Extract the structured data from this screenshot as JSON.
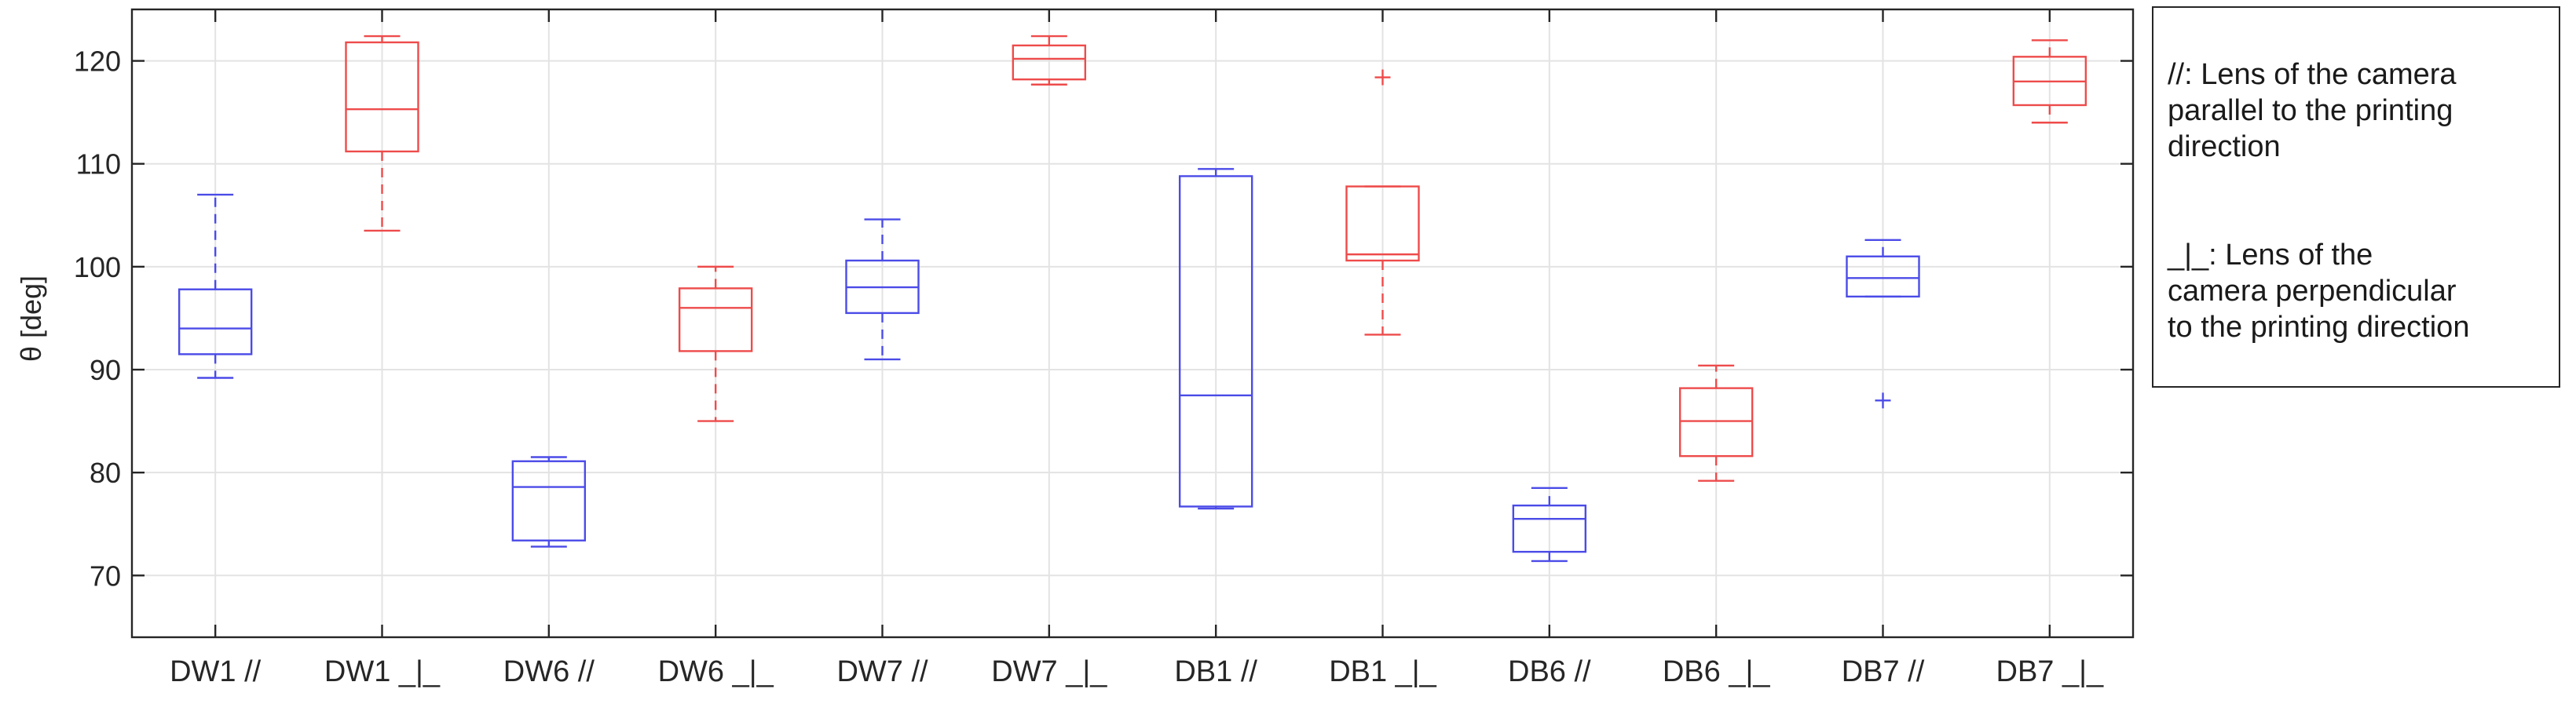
{
  "chart_data": {
    "type": "box",
    "ylabel": "θ [deg]",
    "ylim": [
      64,
      125
    ],
    "yticks": [
      70,
      80,
      90,
      100,
      110,
      120
    ],
    "grid": true,
    "legend_position": "right",
    "colors": {
      "parallel": "#4b4be8",
      "perpendicular": "#ee4b4b",
      "axis": "#262626",
      "grid": "#e3e3e3"
    },
    "categories": [
      "DW1 //",
      "DW1 _|_",
      "DW6 //",
      "DW6 _|_",
      "DW7 //",
      "DW7 _|_",
      "DB1 //",
      "DB1 _|_",
      "DB6 //",
      "DB6 _|_",
      "DB7 //",
      "DB7 _|_"
    ],
    "boxes": [
      {
        "label": "DW1 //",
        "orientation": "parallel",
        "whisker_low": 89.2,
        "q1": 91.5,
        "median": 94.0,
        "q3": 97.8,
        "whisker_high": 107.0,
        "outliers": []
      },
      {
        "label": "DW1 _|_",
        "orientation": "perpendicular",
        "whisker_low": 103.5,
        "q1": 111.2,
        "median": 115.3,
        "q3": 121.8,
        "whisker_high": 122.4,
        "outliers": []
      },
      {
        "label": "DW6 //",
        "orientation": "parallel",
        "whisker_low": 72.8,
        "q1": 73.4,
        "median": 78.6,
        "q3": 81.1,
        "whisker_high": 81.5,
        "outliers": []
      },
      {
        "label": "DW6 _|_",
        "orientation": "perpendicular",
        "whisker_low": 85.0,
        "q1": 91.8,
        "median": 96.0,
        "q3": 97.9,
        "whisker_high": 100.0,
        "outliers": []
      },
      {
        "label": "DW7 //",
        "orientation": "parallel",
        "whisker_low": 91.0,
        "q1": 95.5,
        "median": 98.0,
        "q3": 100.6,
        "whisker_high": 104.6,
        "outliers": []
      },
      {
        "label": "DW7 _|_",
        "orientation": "perpendicular",
        "whisker_low": 117.7,
        "q1": 118.2,
        "median": 120.2,
        "q3": 121.5,
        "whisker_high": 122.4,
        "outliers": []
      },
      {
        "label": "DB1 //",
        "orientation": "parallel",
        "whisker_low": 76.5,
        "q1": 76.7,
        "median": 87.5,
        "q3": 108.8,
        "whisker_high": 109.5,
        "outliers": []
      },
      {
        "label": "DB1 _|_",
        "orientation": "perpendicular",
        "whisker_low": 93.4,
        "q1": 100.6,
        "median": 101.2,
        "q3": 107.8,
        "whisker_high": 107.8,
        "outliers": [
          118.4
        ]
      },
      {
        "label": "DB6 //",
        "orientation": "parallel",
        "whisker_low": 71.4,
        "q1": 72.3,
        "median": 75.5,
        "q3": 76.8,
        "whisker_high": 78.5,
        "outliers": []
      },
      {
        "label": "DB6 _|_",
        "orientation": "perpendicular",
        "whisker_low": 79.2,
        "q1": 81.6,
        "median": 85.0,
        "q3": 88.2,
        "whisker_high": 90.4,
        "outliers": []
      },
      {
        "label": "DB7 //",
        "orientation": "parallel",
        "whisker_low": 97.1,
        "q1": 97.1,
        "median": 98.9,
        "q3": 101.0,
        "whisker_high": 102.6,
        "outliers": [
          87.0
        ]
      },
      {
        "label": "DB7 _|_",
        "orientation": "perpendicular",
        "whisker_low": 114.0,
        "q1": 115.7,
        "median": 118.0,
        "q3": 120.4,
        "whisker_high": 122.0,
        "outliers": []
      }
    ],
    "legend": [
      {
        "text": "//: Lens of the camera parallel to the printing direction"
      },
      {
        "text": "_|_: Lens of the camera perpendicular to the printing direction"
      }
    ]
  },
  "legend_display": [
    "//: Lens of the camera\nparallel to the printing\ndirection",
    "_|_: Lens of the\ncamera perpendicular\nto the printing direction"
  ]
}
